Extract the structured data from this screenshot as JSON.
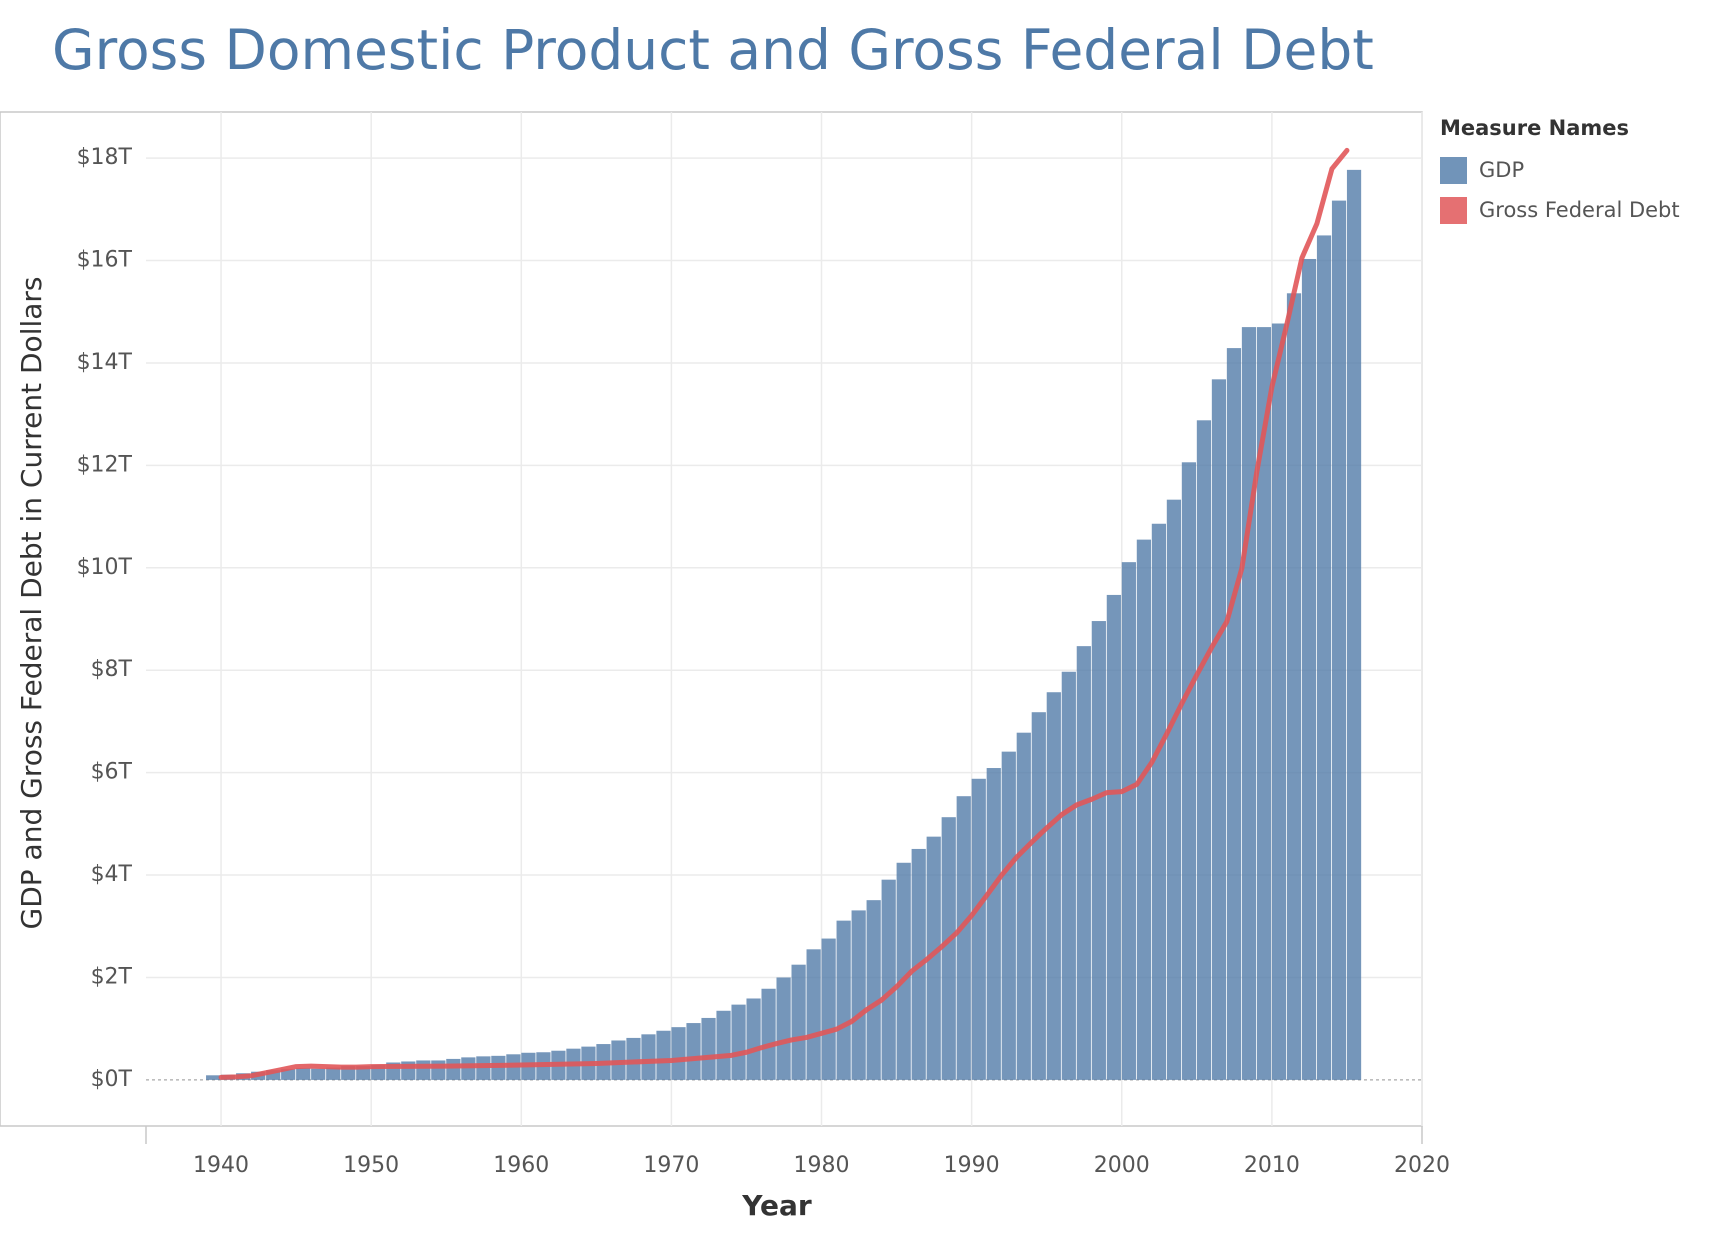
{
  "chart_data": {
    "type": "area",
    "title": "Gross Domestic Product and Gross Federal Debt",
    "xlabel": "Year",
    "ylabel": "GDP and Gross Federal Debt in Current Dollars",
    "xlim": [
      1935,
      2020
    ],
    "ylim": [
      -0.9,
      18.9
    ],
    "x_ticks": [
      1940,
      1950,
      1960,
      1970,
      1980,
      1990,
      2000,
      2010,
      2020
    ],
    "x_tick_labels": [
      "1940",
      "1950",
      "1960",
      "1970",
      "1980",
      "1990",
      "2000",
      "2010",
      "2020"
    ],
    "y_ticks": [
      0,
      2,
      4,
      6,
      8,
      10,
      12,
      14,
      16,
      18
    ],
    "y_tick_labels": [
      "$0T",
      "$2T",
      "$4T",
      "$6T",
      "$8T",
      "$10T",
      "$12T",
      "$14T",
      "$16T",
      "$18T"
    ],
    "y_unit": "trillions of current dollars",
    "grid": true,
    "legend_position": "right",
    "legend_title": "Measure Names",
    "series": [
      {
        "name": "GDP",
        "mark": "step-area",
        "color": "#4e79a7",
        "x": [
          1939,
          1940,
          1941,
          1942,
          1943,
          1944,
          1945,
          1946,
          1947,
          1948,
          1949,
          1950,
          1951,
          1952,
          1953,
          1954,
          1955,
          1956,
          1957,
          1958,
          1959,
          1960,
          1961,
          1962,
          1963,
          1964,
          1965,
          1966,
          1967,
          1968,
          1969,
          1970,
          1971,
          1972,
          1973,
          1974,
          1975,
          1976,
          1977,
          1978,
          1979,
          1980,
          1981,
          1982,
          1983,
          1984,
          1985,
          1986,
          1987,
          1988,
          1989,
          1990,
          1991,
          1992,
          1993,
          1994,
          1995,
          1996,
          1997,
          1998,
          1999,
          2000,
          2001,
          2002,
          2003,
          2004,
          2005,
          2006,
          2007,
          2008,
          2009,
          2010,
          2011,
          2012,
          2013,
          2014,
          2015
        ],
        "values": [
          0.09,
          0.1,
          0.13,
          0.16,
          0.19,
          0.21,
          0.23,
          0.22,
          0.24,
          0.27,
          0.27,
          0.29,
          0.34,
          0.36,
          0.38,
          0.38,
          0.41,
          0.44,
          0.46,
          0.47,
          0.5,
          0.53,
          0.54,
          0.57,
          0.61,
          0.65,
          0.7,
          0.77,
          0.82,
          0.89,
          0.96,
          1.03,
          1.11,
          1.21,
          1.35,
          1.47,
          1.59,
          1.78,
          2.0,
          2.25,
          2.55,
          2.76,
          3.11,
          3.31,
          3.51,
          3.91,
          4.24,
          4.51,
          4.75,
          5.13,
          5.54,
          5.88,
          6.09,
          6.41,
          6.78,
          7.18,
          7.57,
          7.97,
          8.47,
          8.96,
          9.47,
          10.11,
          10.55,
          10.86,
          11.33,
          12.06,
          12.88,
          13.68,
          14.29,
          14.7,
          14.7,
          14.77,
          15.36,
          16.03,
          16.49,
          17.17,
          17.77
        ]
      },
      {
        "name": "Gross Federal Debt",
        "mark": "line",
        "color": "#e15759",
        "x": [
          1940,
          1941,
          1942,
          1943,
          1944,
          1945,
          1946,
          1947,
          1948,
          1949,
          1950,
          1955,
          1960,
          1965,
          1970,
          1974,
          1975,
          1976,
          1977,
          1978,
          1979,
          1980,
          1981,
          1982,
          1983,
          1984,
          1985,
          1986,
          1987,
          1988,
          1989,
          1990,
          1991,
          1992,
          1993,
          1994,
          1995,
          1996,
          1997,
          1998,
          1999,
          2000,
          2001,
          2002,
          2003,
          2004,
          2005,
          2006,
          2007,
          2008,
          2009,
          2010,
          2011,
          2012,
          2013,
          2014,
          2015
        ],
        "values": [
          0.05,
          0.06,
          0.08,
          0.14,
          0.2,
          0.26,
          0.27,
          0.26,
          0.25,
          0.25,
          0.26,
          0.27,
          0.29,
          0.32,
          0.38,
          0.48,
          0.54,
          0.63,
          0.71,
          0.78,
          0.83,
          0.91,
          0.99,
          1.14,
          1.37,
          1.56,
          1.82,
          2.12,
          2.35,
          2.6,
          2.87,
          3.21,
          3.6,
          4.0,
          4.35,
          4.64,
          4.92,
          5.18,
          5.37,
          5.48,
          5.61,
          5.63,
          5.77,
          6.2,
          6.76,
          7.35,
          7.91,
          8.45,
          8.95,
          9.99,
          11.88,
          13.53,
          14.76,
          16.05,
          16.72,
          17.79,
          18.15
        ]
      }
    ]
  }
}
